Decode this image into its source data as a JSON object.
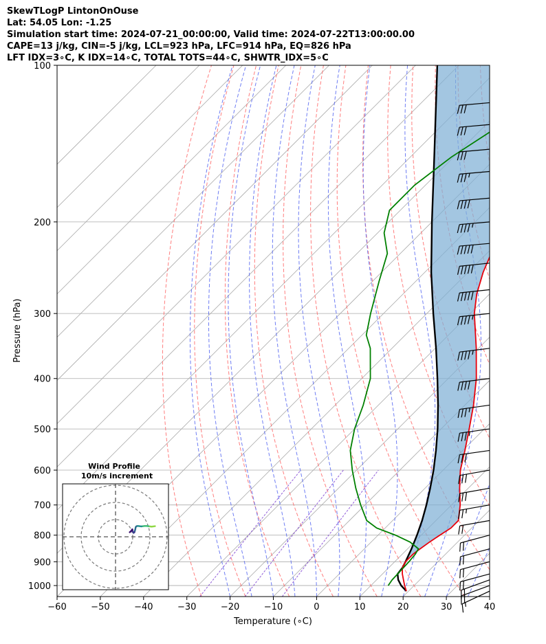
{
  "header": {
    "line1": "SkewTLogP LintonOnOuse",
    "line2": "Lat: 54.05   Lon: -1.25",
    "line3": "Simulation start time: 2024-07-21_00:00:00, Valid time: 2024-07-22T13:00:00.00",
    "line4": "CAPE=13 j/kg, CIN=-5 j/kg, LCL=923 hPa, LFC=914 hPa, EQ=826 hPa",
    "line5": "LFT IDX=3∘C, K IDX=14∘C, TOTAL TOTS=44∘C, SHWTR_IDX=5∘C"
  },
  "chart_data": {
    "type": "line",
    "xlabel": "Temperature (∘C)",
    "ylabel": "Pressure (hPa)",
    "xlim": [
      -60,
      40
    ],
    "ylim": [
      1050,
      100
    ],
    "y_scale": "log",
    "skew": true,
    "x_ticks": [
      -60,
      -50,
      -40,
      -30,
      -20,
      -10,
      0,
      10,
      20,
      30,
      40
    ],
    "x_tick_labels": [
      "−60",
      "−50",
      "−40",
      "−30",
      "−20",
      "−10",
      "0",
      "10",
      "20",
      "30",
      "40"
    ],
    "y_ticks": [
      1000,
      900,
      800,
      700,
      600,
      500,
      400,
      300,
      200,
      100
    ],
    "y_tick_labels": [
      "1000",
      "900",
      "800",
      "700",
      "600",
      "500",
      "400",
      "300",
      "200",
      "100"
    ],
    "grid": true,
    "colors": {
      "temperature": "#e8000b",
      "dewpoint": "#008000",
      "parcel": "#000000",
      "cape_fill": "#7fb0d5",
      "dry_adiabat": "#ff6666",
      "moist_adiabat": "#4a5cf0",
      "mixing_ratio": "#7c3fd1",
      "isotherm": "#aaaaaa"
    },
    "series": [
      {
        "key": "temperature",
        "points": [
          [
            1025,
            19.5
          ],
          [
            1000,
            17.8
          ],
          [
            975,
            16.2
          ],
          [
            950,
            14.6
          ],
          [
            925,
            13.2
          ],
          [
            900,
            12.5
          ],
          [
            870,
            12.5
          ],
          [
            850,
            12.9
          ],
          [
            825,
            13.5
          ],
          [
            800,
            14.3
          ],
          [
            775,
            15.2
          ],
          [
            750,
            15.2
          ],
          [
            700,
            12.0
          ],
          [
            650,
            8.0
          ],
          [
            600,
            4.0
          ],
          [
            550,
            0.5
          ],
          [
            500,
            -3.5
          ],
          [
            450,
            -8.0
          ],
          [
            400,
            -13.5
          ],
          [
            350,
            -20.5
          ],
          [
            300,
            -29.0
          ],
          [
            275,
            -33.0
          ],
          [
            250,
            -36.5
          ],
          [
            230,
            -39.0
          ],
          [
            210,
            -41.5
          ],
          [
            190,
            -44.5
          ],
          [
            170,
            -47.5
          ],
          [
            150,
            -50.5
          ],
          [
            135,
            -53.0
          ],
          [
            125,
            -55.0
          ],
          [
            115,
            -58.0
          ],
          [
            100,
            -63.0
          ]
        ]
      },
      {
        "key": "dewpoint",
        "points": [
          [
            1000,
            14.0
          ],
          [
            975,
            13.6
          ],
          [
            950,
            13.5
          ],
          [
            925,
            13.4
          ],
          [
            900,
            13.3
          ],
          [
            870,
            13.0
          ],
          [
            850,
            12.5
          ],
          [
            825,
            9.0
          ],
          [
            800,
            4.0
          ],
          [
            775,
            -2.0
          ],
          [
            750,
            -6.0
          ],
          [
            700,
            -11.0
          ],
          [
            650,
            -16.0
          ],
          [
            600,
            -21.0
          ],
          [
            550,
            -26.0
          ],
          [
            500,
            -30.0
          ],
          [
            450,
            -33.5
          ],
          [
            400,
            -38.0
          ],
          [
            350,
            -45.0
          ],
          [
            330,
            -49.0
          ],
          [
            300,
            -53.0
          ],
          [
            260,
            -58.5
          ],
          [
            230,
            -63.0
          ],
          [
            210,
            -68.5
          ],
          [
            190,
            -72.5
          ],
          [
            170,
            -72.5
          ],
          [
            150,
            -70.5
          ],
          [
            130,
            -66.5
          ],
          [
            115,
            -63.0
          ],
          [
            100,
            -59.5
          ]
        ]
      },
      {
        "key": "parcel",
        "points": [
          [
            1025,
            19.5
          ],
          [
            1000,
            17.0
          ],
          [
            975,
            15.0
          ],
          [
            950,
            13.5
          ],
          [
            925,
            13.2
          ],
          [
            900,
            12.5
          ],
          [
            850,
            10.9
          ],
          [
            800,
            9.0
          ],
          [
            750,
            6.8
          ],
          [
            700,
            4.2
          ],
          [
            650,
            1.2
          ],
          [
            600,
            -2.2
          ],
          [
            550,
            -6.2
          ],
          [
            500,
            -10.8
          ],
          [
            450,
            -16.2
          ],
          [
            400,
            -22.5
          ],
          [
            350,
            -29.8
          ],
          [
            300,
            -38.5
          ],
          [
            250,
            -48.5
          ],
          [
            200,
            -60.0
          ],
          [
            150,
            -74.5
          ],
          [
            100,
            -95.0
          ]
        ]
      }
    ],
    "wind_barbs": [
      {
        "pressure": 1025,
        "speed_kt": 15,
        "dir_deg": 245
      },
      {
        "pressure": 1000,
        "speed_kt": 20,
        "dir_deg": 250
      },
      {
        "pressure": 975,
        "speed_kt": 20,
        "dir_deg": 250
      },
      {
        "pressure": 950,
        "speed_kt": 20,
        "dir_deg": 255
      },
      {
        "pressure": 900,
        "speed_kt": 20,
        "dir_deg": 255
      },
      {
        "pressure": 850,
        "speed_kt": 20,
        "dir_deg": 255
      },
      {
        "pressure": 800,
        "speed_kt": 20,
        "dir_deg": 255
      },
      {
        "pressure": 750,
        "speed_kt": 20,
        "dir_deg": 260
      },
      {
        "pressure": 700,
        "speed_kt": 25,
        "dir_deg": 260
      },
      {
        "pressure": 650,
        "speed_kt": 30,
        "dir_deg": 260
      },
      {
        "pressure": 600,
        "speed_kt": 30,
        "dir_deg": 260
      },
      {
        "pressure": 550,
        "speed_kt": 30,
        "dir_deg": 262
      },
      {
        "pressure": 500,
        "speed_kt": 35,
        "dir_deg": 262
      },
      {
        "pressure": 450,
        "speed_kt": 35,
        "dir_deg": 262
      },
      {
        "pressure": 400,
        "speed_kt": 40,
        "dir_deg": 263
      },
      {
        "pressure": 350,
        "speed_kt": 45,
        "dir_deg": 263
      },
      {
        "pressure": 300,
        "speed_kt": 45,
        "dir_deg": 264
      },
      {
        "pressure": 270,
        "speed_kt": 50,
        "dir_deg": 264
      },
      {
        "pressure": 240,
        "speed_kt": 50,
        "dir_deg": 264
      },
      {
        "pressure": 220,
        "speed_kt": 50,
        "dir_deg": 265
      },
      {
        "pressure": 200,
        "speed_kt": 45,
        "dir_deg": 265
      },
      {
        "pressure": 180,
        "speed_kt": 40,
        "dir_deg": 265
      },
      {
        "pressure": 160,
        "speed_kt": 35,
        "dir_deg": 265
      },
      {
        "pressure": 145,
        "speed_kt": 30,
        "dir_deg": 265
      },
      {
        "pressure": 130,
        "speed_kt": 30,
        "dir_deg": 265
      },
      {
        "pressure": 118,
        "speed_kt": 30,
        "dir_deg": 265
      }
    ],
    "hodograph": {
      "title": "Wind Profile",
      "subtitle": "10m/s increment",
      "ring_step_ms": 10,
      "rings": 3,
      "points_uv": [
        [
          0.5,
          0.5
        ],
        [
          1.5,
          0.8
        ],
        [
          2.5,
          1.2
        ],
        [
          3.5,
          1.8
        ],
        [
          4.0,
          0.8
        ],
        [
          5.0,
          0.2
        ],
        [
          6.0,
          0.5
        ],
        [
          6.5,
          1.2
        ],
        [
          7.0,
          1.8
        ],
        [
          7.5,
          2.8
        ],
        [
          8.5,
          3.2
        ],
        [
          10.0,
          3.3
        ],
        [
          12.0,
          3.2
        ],
        [
          14.0,
          3.1
        ],
        [
          16.0,
          3.2
        ],
        [
          18.0,
          3.3
        ],
        [
          20.0,
          3.3
        ],
        [
          22.0,
          3.2
        ],
        [
          24.0,
          3.1
        ],
        [
          26.0,
          3.0
        ],
        [
          28.0,
          3.1
        ],
        [
          30.0,
          3.2
        ]
      ]
    }
  }
}
